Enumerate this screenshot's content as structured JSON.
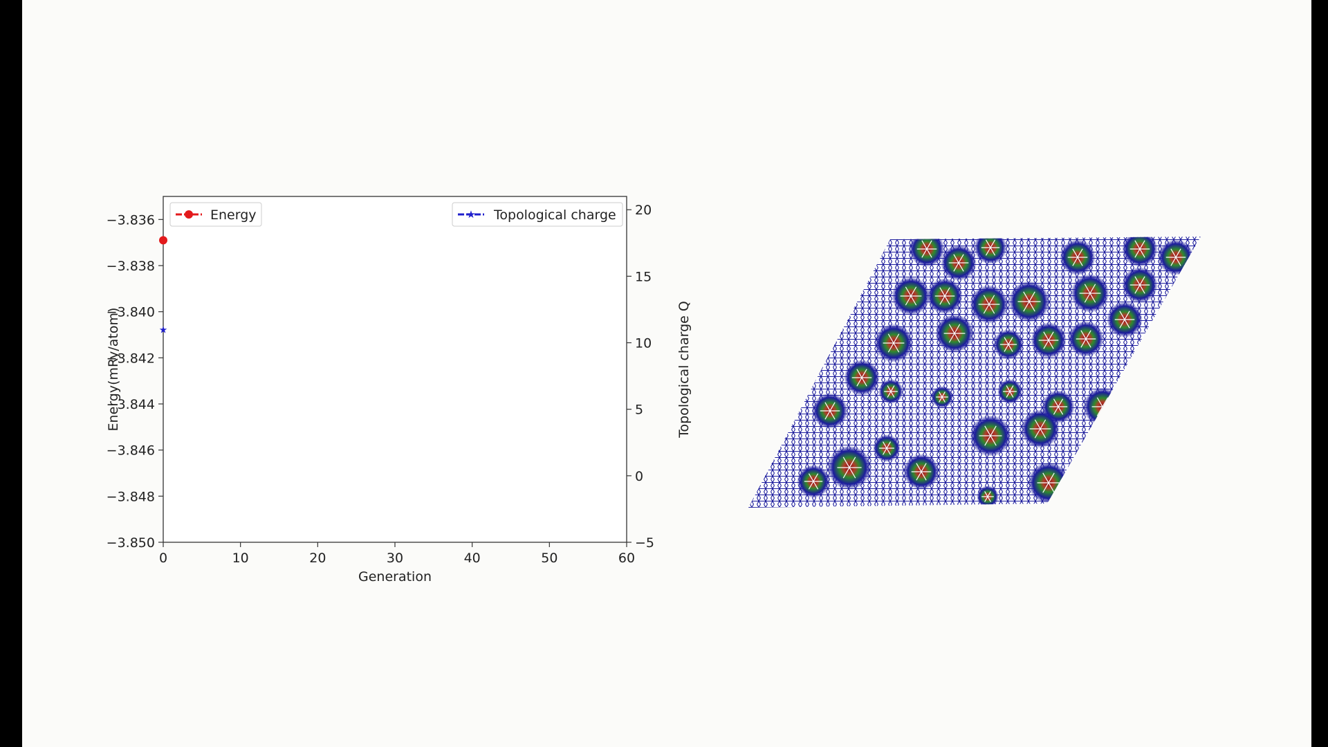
{
  "chart_data": {
    "type": "line",
    "xlabel": "Generation",
    "ylabel_left": "Energy(mRy/atom)",
    "ylabel_right": "Topological charge Q",
    "xlim": [
      0,
      60
    ],
    "ylim_left": [
      -3.85,
      -3.835
    ],
    "ylim_right": [
      -5,
      21
    ],
    "x_ticks": [
      "0",
      "10",
      "20",
      "30",
      "40",
      "50",
      "60"
    ],
    "y_left_ticks": [
      "−3.836",
      "−3.838",
      "−3.840",
      "−3.842",
      "−3.844",
      "−3.846",
      "−3.848",
      "−3.850"
    ],
    "y_right_ticks": [
      "20",
      "15",
      "10",
      "5",
      "0",
      "−5"
    ],
    "grid": false,
    "series": [
      {
        "name": "Energy",
        "axis": "left",
        "color": "#e31a1c",
        "marker": "circle",
        "x": [
          0
        ],
        "y": [
          -3.8369
        ]
      },
      {
        "name": "Topological charge",
        "axis": "right",
        "color": "#1f1fcc",
        "marker": "star",
        "x": [
          0
        ],
        "y": [
          11
        ]
      }
    ],
    "legend_placement": [
      "upper-left",
      "upper-right"
    ]
  },
  "panel": {
    "spin_texture": "Skyrmion lattice visualization (rhombic lattice)",
    "colors": {
      "core": "#7a1010",
      "mid": "#2e8a2e",
      "outer": "#1c1c9c",
      "bg": "#fbfbf9"
    }
  }
}
